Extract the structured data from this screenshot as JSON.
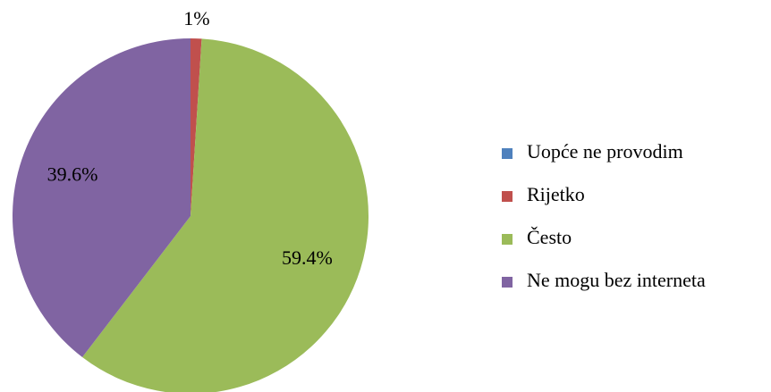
{
  "chart_data": {
    "type": "pie",
    "categories": [
      "Uopće ne provodim",
      "Rijetko",
      "Često",
      "Ne mogu bez interneta"
    ],
    "values": [
      0,
      1,
      59.4,
      39.6
    ],
    "value_labels": [
      null,
      "1%",
      "59.4%",
      "39.6%"
    ],
    "colors": [
      "#4f81bd",
      "#c0504d",
      "#9bbb59",
      "#8064a2"
    ],
    "legend": "right"
  }
}
